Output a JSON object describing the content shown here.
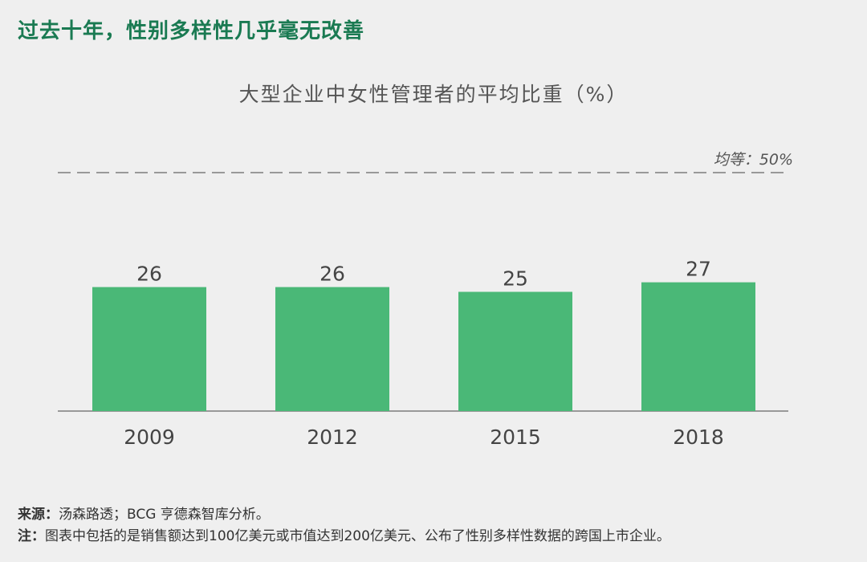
{
  "headline": "过去十年，性别多样性几乎毫无改善",
  "footnotes": {
    "source_label": "来源：",
    "source_text": "汤森路透；BCG 亨德森智库分析。",
    "note_label": "注：",
    "note_text": "图表中包括的是销售额达到100亿美元或市值达到200亿美元、公布了性别多样性数据的跨国上市企业。"
  },
  "colors": {
    "bar": "#4ab877",
    "headline": "#1a7a52"
  },
  "chart_data": {
    "type": "bar",
    "title": "大型企业中女性管理者的平均比重（%）",
    "categories": [
      "2009",
      "2012",
      "2015",
      "2018"
    ],
    "values": [
      26,
      26,
      25,
      27
    ],
    "ylim": [
      0,
      50
    ],
    "reference_line": {
      "value": 50,
      "label": "均等：50%",
      "style": "dashed"
    },
    "xlabel": "",
    "ylabel": "",
    "grid": false
  }
}
